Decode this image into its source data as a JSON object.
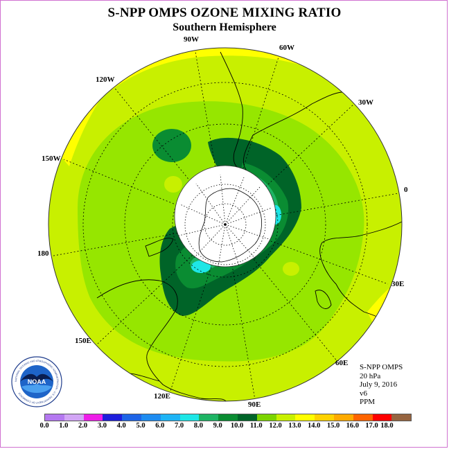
{
  "title": "S-NPP OMPS OZONE MIXING RATIO",
  "subtitle": "Southern Hemisphere",
  "longitudes": [
    "90W",
    "60W",
    "120W",
    "30W",
    "150W",
    "0",
    "180",
    "30E",
    "150E",
    "60E",
    "120E",
    "90E"
  ],
  "info": {
    "line1": "S-NPP OMPS",
    "line2": "20 hPa",
    "line3": "July 9, 2016",
    "line4": "v6",
    "line5": "PPM"
  },
  "logo_text": "NOAA",
  "logo_ring_text": "NATIONAL OCEANIC AND ATMOSPHERIC ADMINISTRATION · U.S. DEPARTMENT OF COMMERCE",
  "colorbar": {
    "ticks": [
      "0.0",
      "1.0",
      "2.0",
      "3.0",
      "4.0",
      "5.0",
      "6.0",
      "7.0",
      "8.0",
      "9.0",
      "10.0",
      "11.0",
      "12.0",
      "13.0",
      "14.0",
      "15.0",
      "16.0",
      "17.0",
      "18.0"
    ],
    "colors": [
      "#b478f0",
      "#d2a5f5",
      "#ee1ee8",
      "#1e1edc",
      "#1e64e6",
      "#1e8cf0",
      "#1eb4f5",
      "#1ee6e6",
      "#1eb464",
      "#0a8c32",
      "#006428",
      "#7cd400",
      "#c8f000",
      "#ffff00",
      "#ffd200",
      "#ffaa00",
      "#ff6400",
      "#ff0000",
      "#966440"
    ]
  },
  "map_colors": {
    "yellow": "#ffff00",
    "yellow_green": "#c8f000",
    "light_green": "#96e600",
    "green": "#1eb464",
    "dark_green": "#0a8c32",
    "darkest_green": "#006428",
    "cyan": "#1ee6e6"
  }
}
